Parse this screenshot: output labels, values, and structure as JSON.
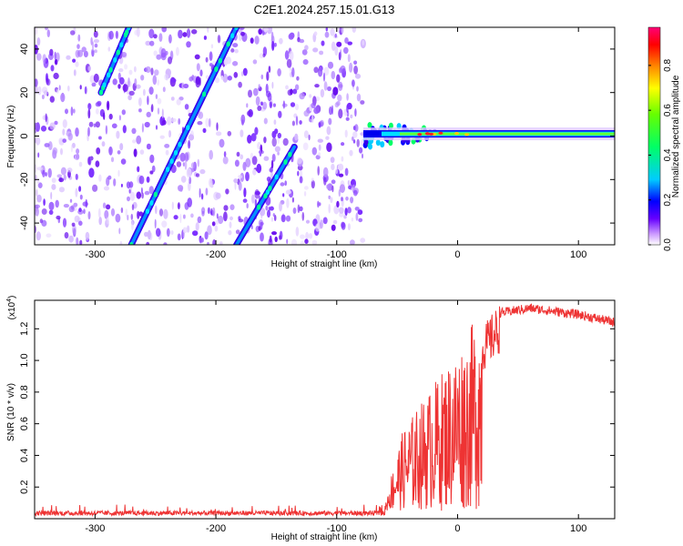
{
  "title": "C2E1.2024.257.15.01.G13",
  "chart_data": [
    {
      "type": "heatmap",
      "xlabel": "Height of straight line (km)",
      "ylabel": "Frequency (Hz)",
      "xlim": [
        -350,
        130
      ],
      "ylim": [
        -50,
        50
      ],
      "x_ticks": [
        -300,
        -200,
        -100,
        0,
        100
      ],
      "y_ticks": [
        -40,
        -20,
        0,
        20,
        40
      ],
      "data_extent_x": [
        -350,
        -78
      ],
      "carrier_line": {
        "x_range": [
          -78,
          130
        ],
        "frequency": 1
      },
      "tracks": [
        {
          "x_start": -295,
          "y_start": 20,
          "x_end": -272,
          "y_end": 50
        },
        {
          "x_start": -270,
          "y_start": -50,
          "x_start_note": "",
          "x_end": -183,
          "y_end": 50
        },
        {
          "x_start": -183,
          "y_start": -50,
          "x_end": -135,
          "y_end": -5
        }
      ],
      "colorbar": {
        "label": "Normalized spectral amplitude",
        "range": [
          0,
          0.97
        ],
        "ticks": [
          "0.0",
          "0.2",
          "0.4",
          "0.6",
          "0.8"
        ],
        "tick_values": [
          0,
          0.2,
          0.4,
          0.6,
          0.8
        ],
        "colors": [
          "#ffffff",
          "#6600ff",
          "#0000ff",
          "#00ccff",
          "#00ff66",
          "#66ff00",
          "#ffff00",
          "#ff8800",
          "#ff0000",
          "#ff0077"
        ]
      }
    },
    {
      "type": "line",
      "xlabel": "Height of straight line (km)",
      "ylabel": "SNR (10 * v/v)",
      "y_multiplier": "(x10",
      "y_multiplier_exp": "4",
      "y_multiplier_close": ")",
      "xlim": [
        -350,
        130
      ],
      "ylim": [
        0,
        1.38
      ],
      "x_ticks": [
        -300,
        -200,
        -100,
        0,
        100
      ],
      "y_ticks": [
        "0.2",
        "0.4",
        "0.6",
        "0.8",
        "1.0",
        "1.2"
      ],
      "y_tick_values": [
        0.2,
        0.4,
        0.6,
        0.8,
        1.0,
        1.2
      ],
      "color": "#ee3333",
      "envelope": [
        {
          "x": -350,
          "y": 0.03
        },
        {
          "x": -60,
          "y": 0.03
        },
        {
          "x": -55,
          "y": 0.2
        },
        {
          "x": -45,
          "y": 0.45
        },
        {
          "x": -35,
          "y": 0.55
        },
        {
          "x": -20,
          "y": 0.7
        },
        {
          "x": -5,
          "y": 0.85
        },
        {
          "x": 10,
          "y": 1.0
        },
        {
          "x": 20,
          "y": 1.15
        },
        {
          "x": 35,
          "y": 1.3
        },
        {
          "x": 60,
          "y": 1.33
        },
        {
          "x": 100,
          "y": 1.29
        },
        {
          "x": 130,
          "y": 1.24
        }
      ]
    }
  ]
}
